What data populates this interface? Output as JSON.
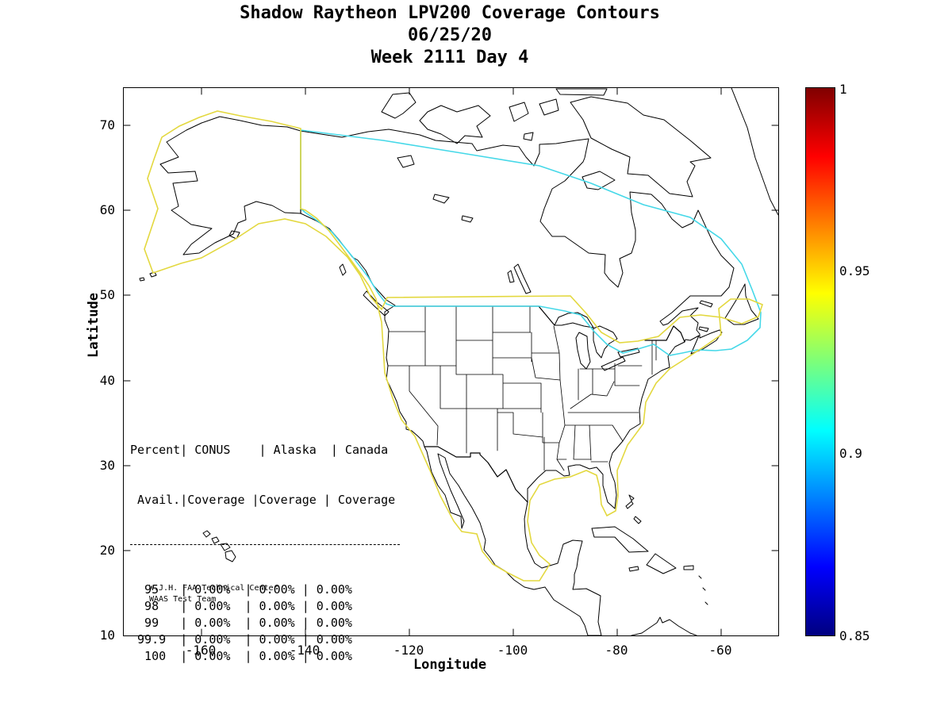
{
  "title": {
    "line1": "Shadow Raytheon LPV200 Coverage Contours",
    "line2": "06/25/20",
    "line3": "Week 2111 Day 4"
  },
  "axes": {
    "xlabel": "Longitude",
    "ylabel": "Latitude",
    "x_tick_labels": [
      "-160",
      "-140",
      "-120",
      "-100",
      "-80",
      "-60"
    ],
    "y_tick_labels": [
      "70",
      "60",
      "50",
      "40",
      "30",
      "20",
      "10"
    ]
  },
  "colorbar": {
    "tick_labels": [
      "1",
      "0.95",
      "0.9",
      "0.85"
    ],
    "min": 0.85,
    "max": 1,
    "colormap": "jet",
    "jet_stops": [
      "#800000",
      "#ff0000",
      "#ff8000",
      "#ffff00",
      "#7cff7a",
      "#00ffff",
      "#0080ff",
      "#0000ff",
      "#000080"
    ]
  },
  "coverage_table": {
    "header_line1": "Percent| CONUS    | Alaska  | Canada",
    "header_line2": " Avail.|Coverage |Coverage | Coverage",
    "rows": [
      [
        "95",
        "0.00%",
        "0.00%",
        "0.00%"
      ],
      [
        "98",
        "0.00%",
        "0.00%",
        "0.00%"
      ],
      [
        "99",
        "0.00%",
        "0.00%",
        "0.00%"
      ],
      [
        "99.9",
        "0.00%",
        "0.00%",
        "0.00%"
      ],
      [
        "100",
        "0.00%",
        "0.00%",
        "0.00%"
      ]
    ]
  },
  "annotation": {
    "line1": "W.J.H. FAA Technical Center",
    "line2": "WAAS Test Team"
  },
  "contours": {
    "level_095_color": "#e3d83f",
    "level_090_color": "#45d8e8"
  },
  "chart_data": {
    "type": "map",
    "subtype": "coverage_contour",
    "title": "Shadow Raytheon LPV200 Coverage Contours",
    "date": "06/25/20",
    "gps_week_day": "Week 2111 Day 4",
    "xlabel": "Longitude",
    "ylabel": "Latitude",
    "xlim": [
      -175,
      -49
    ],
    "ylim": [
      10,
      74.4
    ],
    "x_ticks": [
      -160,
      -140,
      -120,
      -100,
      -80,
      -60
    ],
    "y_ticks": [
      10,
      20,
      30,
      40,
      50,
      60,
      70
    ],
    "region_shown": "North America with US state borders, Canada, Alaska, Mexico, Caribbean, Hawaii",
    "colorbar": {
      "min": 0.85,
      "max": 1,
      "ticks": [
        0.85,
        0.9,
        0.95,
        1
      ],
      "colormap": "jet"
    },
    "contour_levels": [
      {
        "value": 0.95,
        "color_hex": "#e3d83f",
        "description": "availability contour around Alaska and CONUS/East coast"
      },
      {
        "value": 0.9,
        "color_hex": "#45d8e8",
        "description": "availability contour around Canada / northern boundary"
      }
    ],
    "table": {
      "columns": [
        "Percent Avail.",
        "CONUS Coverage",
        "Alaska Coverage",
        "Canada Coverage"
      ],
      "rows": [
        [
          "95",
          "0.00%",
          "0.00%",
          "0.00%"
        ],
        [
          "98",
          "0.00%",
          "0.00%",
          "0.00%"
        ],
        [
          "99",
          "0.00%",
          "0.00%",
          "0.00%"
        ],
        [
          "99.9",
          "0.00%",
          "0.00%",
          "0.00%"
        ],
        [
          "100",
          "0.00%",
          "0.00%",
          "0.00%"
        ]
      ]
    },
    "annotations": [
      "W.J.H. FAA Technical Center",
      "WAAS Test Team"
    ]
  }
}
